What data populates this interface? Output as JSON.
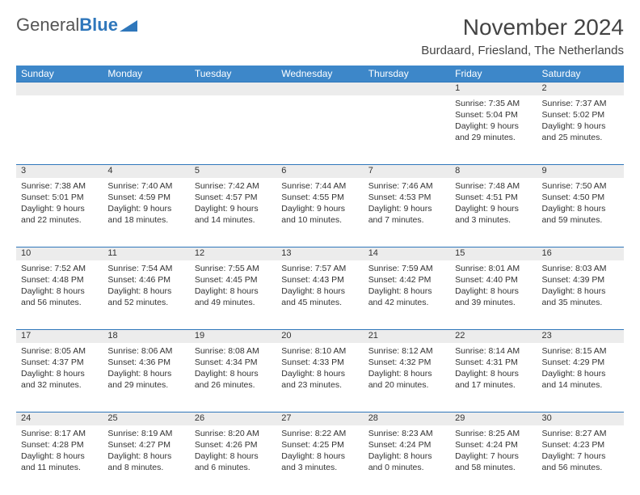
{
  "brand": {
    "part1": "General",
    "part2": "Blue",
    "triangle_color": "#2f77bb"
  },
  "title": "November 2024",
  "location": "Burdaard, Friesland, The Netherlands",
  "header_bg": "#3d87c9",
  "header_fg": "#ffffff",
  "daynum_bg": "#ececec",
  "rule_color": "#2f77bb",
  "text_color": "#333333",
  "columns": [
    "Sunday",
    "Monday",
    "Tuesday",
    "Wednesday",
    "Thursday",
    "Friday",
    "Saturday"
  ],
  "weeks": [
    [
      null,
      null,
      null,
      null,
      null,
      {
        "n": "1",
        "sr": "7:35 AM",
        "ss": "5:04 PM",
        "dl": "9 hours and 29 minutes."
      },
      {
        "n": "2",
        "sr": "7:37 AM",
        "ss": "5:02 PM",
        "dl": "9 hours and 25 minutes."
      }
    ],
    [
      {
        "n": "3",
        "sr": "7:38 AM",
        "ss": "5:01 PM",
        "dl": "9 hours and 22 minutes."
      },
      {
        "n": "4",
        "sr": "7:40 AM",
        "ss": "4:59 PM",
        "dl": "9 hours and 18 minutes."
      },
      {
        "n": "5",
        "sr": "7:42 AM",
        "ss": "4:57 PM",
        "dl": "9 hours and 14 minutes."
      },
      {
        "n": "6",
        "sr": "7:44 AM",
        "ss": "4:55 PM",
        "dl": "9 hours and 10 minutes."
      },
      {
        "n": "7",
        "sr": "7:46 AM",
        "ss": "4:53 PM",
        "dl": "9 hours and 7 minutes."
      },
      {
        "n": "8",
        "sr": "7:48 AM",
        "ss": "4:51 PM",
        "dl": "9 hours and 3 minutes."
      },
      {
        "n": "9",
        "sr": "7:50 AM",
        "ss": "4:50 PM",
        "dl": "8 hours and 59 minutes."
      }
    ],
    [
      {
        "n": "10",
        "sr": "7:52 AM",
        "ss": "4:48 PM",
        "dl": "8 hours and 56 minutes."
      },
      {
        "n": "11",
        "sr": "7:54 AM",
        "ss": "4:46 PM",
        "dl": "8 hours and 52 minutes."
      },
      {
        "n": "12",
        "sr": "7:55 AM",
        "ss": "4:45 PM",
        "dl": "8 hours and 49 minutes."
      },
      {
        "n": "13",
        "sr": "7:57 AM",
        "ss": "4:43 PM",
        "dl": "8 hours and 45 minutes."
      },
      {
        "n": "14",
        "sr": "7:59 AM",
        "ss": "4:42 PM",
        "dl": "8 hours and 42 minutes."
      },
      {
        "n": "15",
        "sr": "8:01 AM",
        "ss": "4:40 PM",
        "dl": "8 hours and 39 minutes."
      },
      {
        "n": "16",
        "sr": "8:03 AM",
        "ss": "4:39 PM",
        "dl": "8 hours and 35 minutes."
      }
    ],
    [
      {
        "n": "17",
        "sr": "8:05 AM",
        "ss": "4:37 PM",
        "dl": "8 hours and 32 minutes."
      },
      {
        "n": "18",
        "sr": "8:06 AM",
        "ss": "4:36 PM",
        "dl": "8 hours and 29 minutes."
      },
      {
        "n": "19",
        "sr": "8:08 AM",
        "ss": "4:34 PM",
        "dl": "8 hours and 26 minutes."
      },
      {
        "n": "20",
        "sr": "8:10 AM",
        "ss": "4:33 PM",
        "dl": "8 hours and 23 minutes."
      },
      {
        "n": "21",
        "sr": "8:12 AM",
        "ss": "4:32 PM",
        "dl": "8 hours and 20 minutes."
      },
      {
        "n": "22",
        "sr": "8:14 AM",
        "ss": "4:31 PM",
        "dl": "8 hours and 17 minutes."
      },
      {
        "n": "23",
        "sr": "8:15 AM",
        "ss": "4:29 PM",
        "dl": "8 hours and 14 minutes."
      }
    ],
    [
      {
        "n": "24",
        "sr": "8:17 AM",
        "ss": "4:28 PM",
        "dl": "8 hours and 11 minutes."
      },
      {
        "n": "25",
        "sr": "8:19 AM",
        "ss": "4:27 PM",
        "dl": "8 hours and 8 minutes."
      },
      {
        "n": "26",
        "sr": "8:20 AM",
        "ss": "4:26 PM",
        "dl": "8 hours and 6 minutes."
      },
      {
        "n": "27",
        "sr": "8:22 AM",
        "ss": "4:25 PM",
        "dl": "8 hours and 3 minutes."
      },
      {
        "n": "28",
        "sr": "8:23 AM",
        "ss": "4:24 PM",
        "dl": "8 hours and 0 minutes."
      },
      {
        "n": "29",
        "sr": "8:25 AM",
        "ss": "4:24 PM",
        "dl": "7 hours and 58 minutes."
      },
      {
        "n": "30",
        "sr": "8:27 AM",
        "ss": "4:23 PM",
        "dl": "7 hours and 56 minutes."
      }
    ]
  ],
  "labels": {
    "sunrise": "Sunrise:",
    "sunset": "Sunset:",
    "daylight": "Daylight:"
  }
}
